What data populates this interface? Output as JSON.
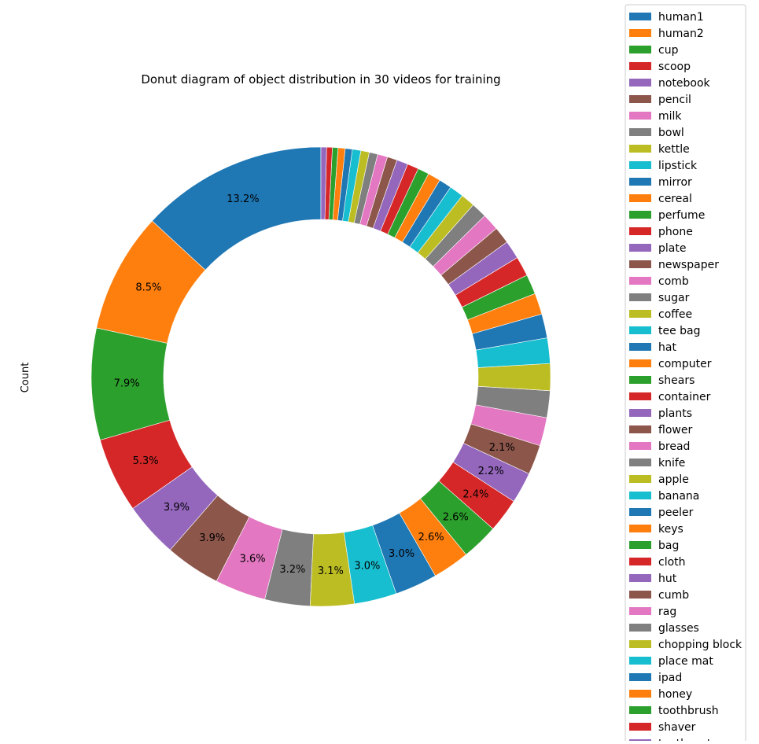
{
  "chart_data": {
    "type": "pie",
    "style": "donut",
    "title": "Donut diagram of object distribution in 30 videos for training",
    "ylabel": "Count",
    "legend_position": "right",
    "start_angle_deg": 90,
    "direction": "counterclockwise",
    "autopct_format": "%.1f%%",
    "labels": [
      "human1",
      "human2",
      "cup",
      "scoop",
      "notebook",
      "pencil",
      "milk",
      "bowl",
      "kettle",
      "lipstick",
      "mirror",
      "cereal",
      "perfume",
      "phone",
      "plate",
      "newspaper",
      "comb",
      "sugar",
      "coffee",
      "tee bag",
      "hat",
      "computer",
      "shears",
      "container",
      "plants",
      "flower",
      "bread",
      "knife",
      "apple",
      "banana",
      "peeler",
      "keys",
      "bag",
      "cloth",
      "hut",
      "cumb",
      "rag",
      "glasses",
      "chopping block",
      "place mat",
      "ipad",
      "honey",
      "toothbrush",
      "shaver",
      "toothpaste"
    ],
    "values": [
      13.2,
      8.5,
      7.9,
      5.3,
      3.9,
      3.9,
      3.6,
      3.2,
      3.1,
      3.0,
      3.0,
      2.6,
      2.6,
      2.4,
      2.2,
      2.1,
      2.0,
      1.9,
      1.9,
      1.8,
      1.7,
      1.5,
      1.4,
      1.4,
      1.3,
      1.2,
      1.2,
      1.1,
      1.0,
      1.0,
      0.9,
      0.9,
      0.8,
      0.8,
      0.8,
      0.7,
      0.7,
      0.6,
      0.6,
      0.6,
      0.5,
      0.5,
      0.4,
      0.4,
      0.4
    ],
    "visible_pct_labels": [
      "13.2%",
      "8.5%",
      "7.9%",
      "5.3%",
      "3.9%",
      "3.9%",
      "3.6%",
      "3.2%",
      "3.1%",
      "3.0%",
      "3.0%",
      "2.6%",
      "2.6%",
      "2.4%",
      "2.2%",
      "2.1%"
    ],
    "colors": [
      "#1f77b4",
      "#ff7f0e",
      "#2ca02c",
      "#d62728",
      "#9467bd",
      "#8c564b",
      "#e377c2",
      "#7f7f7f",
      "#bcbd22",
      "#17becf"
    ]
  }
}
